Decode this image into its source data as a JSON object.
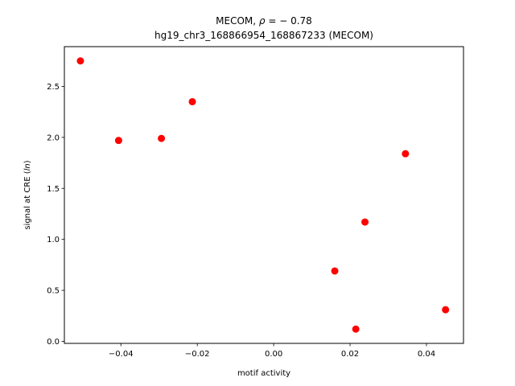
{
  "chart_data": {
    "type": "scatter",
    "title_line1_prefix": "MECOM, ",
    "title_line1_rho": "ρ",
    "title_line1_suffix": " = − 0.78",
    "title_line2": "hg19_chr3_168866954_168867233 (MECOM)",
    "xlabel": "motif activity",
    "ylabel_prefix": "signal at CRE (",
    "ylabel_italic": "ln",
    "ylabel_suffix": ")",
    "xlim": [
      -0.0548,
      0.0497
    ],
    "ylim": [
      -0.02,
      2.89
    ],
    "xticks": [
      -0.04,
      -0.02,
      0.0,
      0.02,
      0.04
    ],
    "xtick_labels": [
      "−0.04",
      "−0.02",
      "0.00",
      "0.02",
      "0.04"
    ],
    "yticks": [
      0.0,
      0.5,
      1.0,
      1.5,
      2.0,
      2.5
    ],
    "ytick_labels": [
      "0.0",
      "0.5",
      "1.0",
      "1.5",
      "2.0",
      "2.5"
    ],
    "marker_color": "#ff0000",
    "points": [
      {
        "x": -0.0506,
        "y": 2.75
      },
      {
        "x": -0.0406,
        "y": 1.97
      },
      {
        "x": -0.0294,
        "y": 1.99
      },
      {
        "x": -0.0213,
        "y": 2.35
      },
      {
        "x": 0.016,
        "y": 0.69
      },
      {
        "x": 0.0215,
        "y": 0.12
      },
      {
        "x": 0.0239,
        "y": 1.17
      },
      {
        "x": 0.0345,
        "y": 1.84
      },
      {
        "x": 0.045,
        "y": 0.31
      }
    ]
  }
}
